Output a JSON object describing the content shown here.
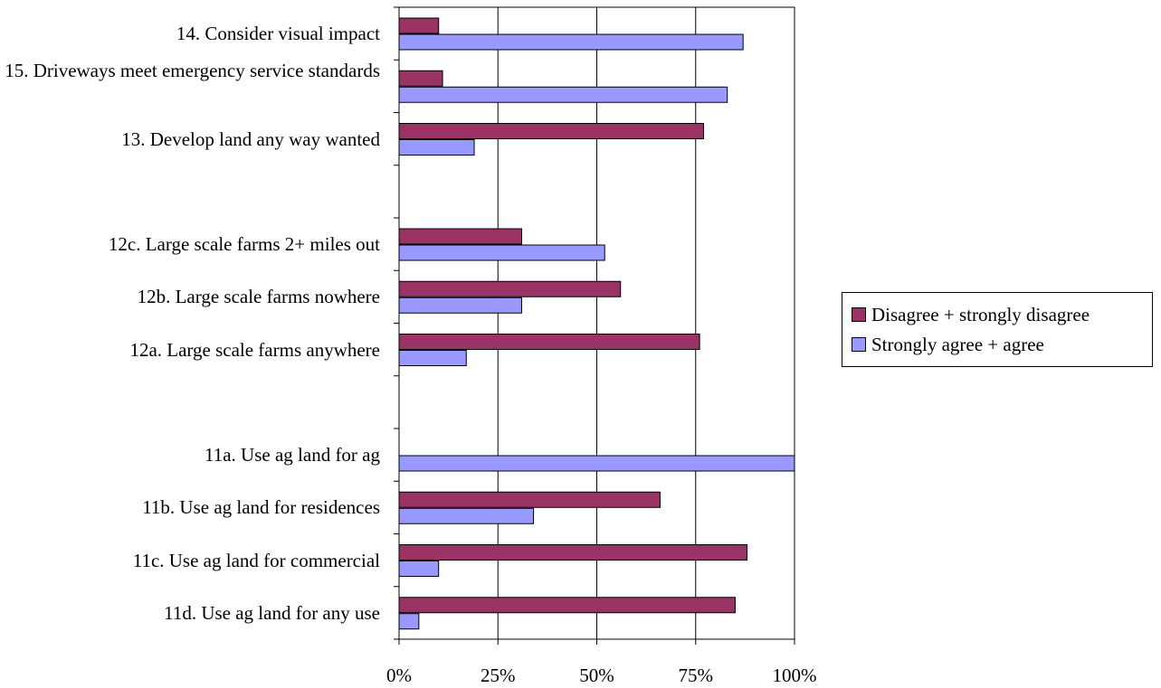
{
  "chart_data": {
    "type": "bar",
    "orientation": "horizontal",
    "categories": [
      "14. Consider visual impact",
      "15. Driveways meet emergency service standards",
      "13. Develop land any way wanted",
      "",
      "12c. Large scale farms 2+ miles out",
      "12b. Large scale farms nowhere",
      "12a. Large scale farms anywhere",
      "",
      "11a. Use ag land for ag",
      "11b. Use ag land for residences",
      "11c. Use ag land for commercial",
      "11d. Use ag land for any use"
    ],
    "series": [
      {
        "name": "Disagree + strongly disagree",
        "color": "#993366",
        "values": [
          10,
          11,
          77,
          null,
          31,
          56,
          76,
          null,
          0,
          66,
          88,
          85
        ]
      },
      {
        "name": "Strongly agree + agree",
        "color": "#9999ff",
        "values": [
          87,
          83,
          19,
          null,
          52,
          31,
          17,
          null,
          100,
          34,
          10,
          5
        ]
      }
    ],
    "x_ticks": [
      "0%",
      "25%",
      "50%",
      "75%",
      "100%"
    ],
    "xlim": [
      0,
      100
    ],
    "grid": true,
    "legend_position": "right"
  }
}
